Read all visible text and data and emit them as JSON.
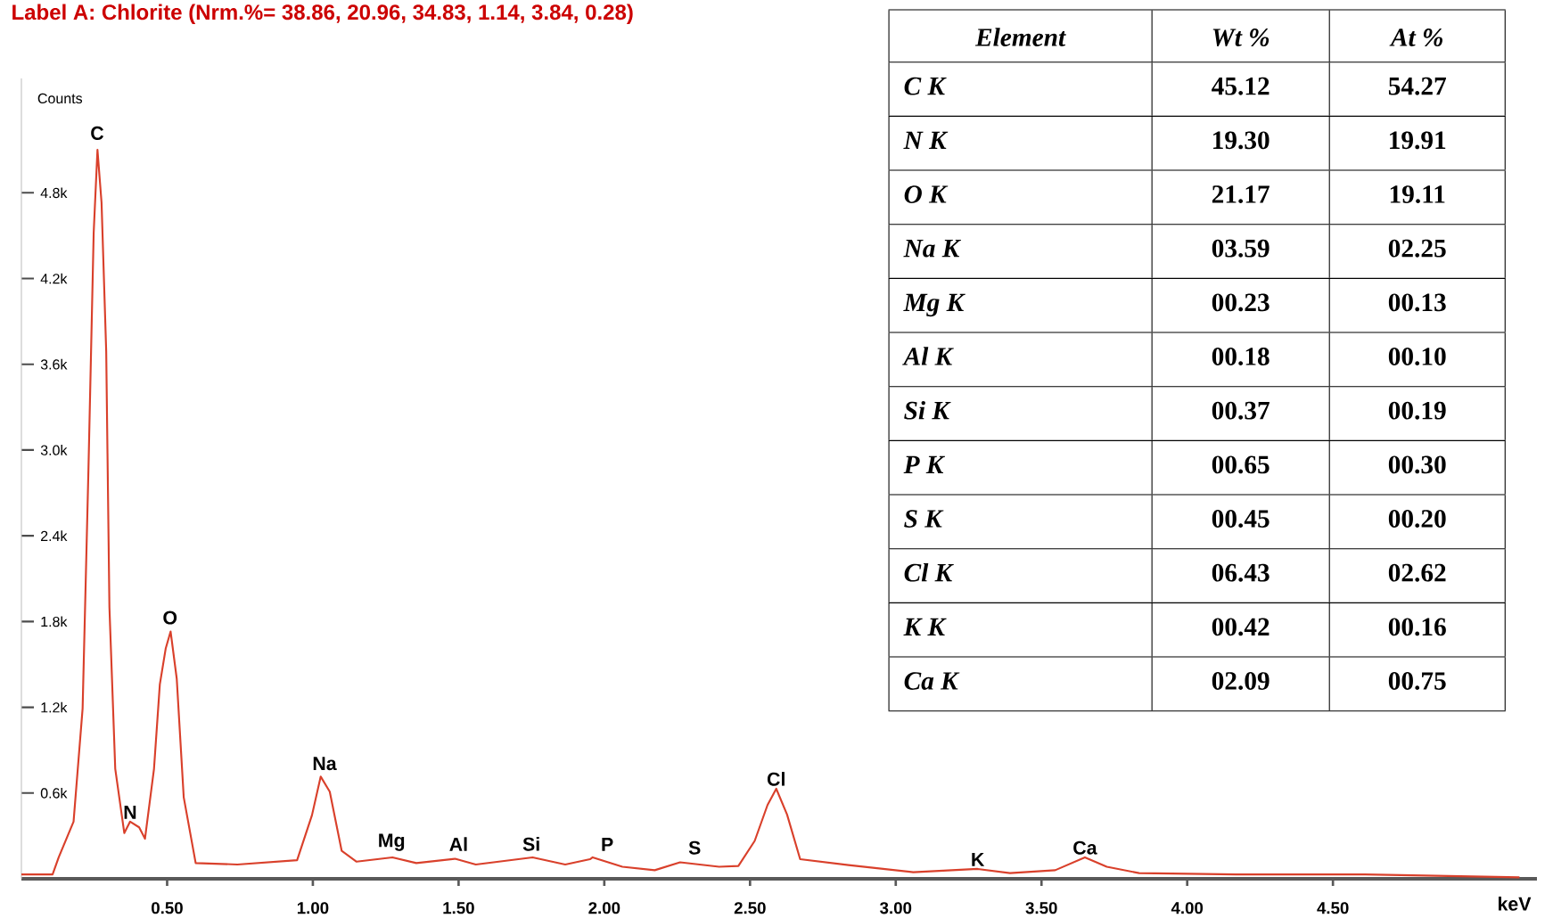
{
  "chart_data": [
    {
      "type": "line",
      "title": "Label A: Chlorite (Nrm.%= 38.86, 20.96, 34.83, 1.14, 3.84, 0.28)",
      "xlabel": "keV",
      "ylabel": "Counts",
      "x": [
        0.0,
        0.107,
        0.128,
        0.179,
        0.21,
        0.23,
        0.248,
        0.261,
        0.275,
        0.291,
        0.302,
        0.322,
        0.353,
        0.373,
        0.404,
        0.424,
        0.455,
        0.475,
        0.495,
        0.512,
        0.533,
        0.557,
        0.598,
        0.741,
        0.946,
        0.997,
        1.027,
        1.058,
        1.099,
        1.15,
        1.273,
        1.355,
        1.488,
        1.559,
        1.754,
        1.866,
        1.951,
        1.96,
        2.062,
        2.173,
        2.26,
        2.394,
        2.46,
        2.516,
        2.56,
        2.59,
        2.627,
        2.672,
        2.838,
        3.06,
        3.281,
        3.392,
        3.547,
        3.649,
        3.724,
        3.835,
        4.168,
        4.61,
        5.14
      ],
      "series": [
        {
          "color": "#d9402b",
          "values": [
            30,
            30,
            150,
            400,
            1190,
            2860,
            4520,
            5100,
            4730,
            3690,
            1900,
            770,
            320,
            400,
            360,
            280,
            770,
            1360,
            1610,
            1730,
            1400,
            570,
            110,
            100,
            130,
            445,
            715,
            610,
            195,
            120,
            150,
            110,
            140,
            100,
            150,
            100,
            137,
            150,
            84,
            60,
            115,
            84,
            90,
            265,
            516,
            630,
            450,
            137,
            96,
            46,
            69,
            40,
            60,
            150,
            84,
            40,
            30,
            30,
            10
          ]
        }
      ],
      "xlim": [
        0,
        5.2
      ],
      "ylim": [
        0,
        5600
      ],
      "xticks": [
        {
          "value": 0.5,
          "label": "0.50"
        },
        {
          "value": 1.0,
          "label": "1.00"
        },
        {
          "value": 1.5,
          "label": "1.50"
        },
        {
          "value": 2.0,
          "label": "2.00"
        },
        {
          "value": 2.5,
          "label": "2.50"
        },
        {
          "value": 3.0,
          "label": "3.00"
        },
        {
          "value": 3.5,
          "label": "3.50"
        },
        {
          "value": 4.0,
          "label": "4.00"
        },
        {
          "value": 4.5,
          "label": "4.50"
        }
      ],
      "yticks": [
        {
          "value": 600,
          "label": "0.6k"
        },
        {
          "value": 1200,
          "label": "1.2k"
        },
        {
          "value": 1800,
          "label": "1.8k"
        },
        {
          "value": 2400,
          "label": "2.4k"
        },
        {
          "value": 3000,
          "label": "3.0k"
        },
        {
          "value": 3600,
          "label": "3.6k"
        },
        {
          "value": 4200,
          "label": "4.2k"
        },
        {
          "value": 4800,
          "label": "4.8k"
        }
      ],
      "annotations": [
        {
          "text": "C",
          "x": 0.26,
          "y": 5150
        },
        {
          "text": "N",
          "x": 0.373,
          "y": 400
        },
        {
          "text": "O",
          "x": 0.51,
          "y": 1760
        },
        {
          "text": "Na",
          "x": 1.04,
          "y": 740
        },
        {
          "text": "Mg",
          "x": 1.27,
          "y": 175
        },
        {
          "text": "Al",
          "x": 1.5,
          "y": 175
        },
        {
          "text": "Si",
          "x": 1.75,
          "y": 175
        },
        {
          "text": "P",
          "x": 2.01,
          "y": 175
        },
        {
          "text": "S",
          "x": 2.31,
          "y": 150
        },
        {
          "text": "Cl",
          "x": 2.59,
          "y": 630
        },
        {
          "text": "K",
          "x": 3.281,
          "y": 69
        },
        {
          "text": "Ca",
          "x": 3.649,
          "y": 150
        }
      ]
    },
    {
      "type": "other",
      "categories": [
        "Element",
        "Wt %",
        "At %"
      ],
      "annotations": [
        "C K",
        "45.12",
        "54.27",
        "N K",
        "19.30",
        "19.91",
        "O K",
        "21.17",
        "19.11",
        "Na K",
        "03.59",
        "02.25",
        "Mg K",
        "00.23",
        "00.13",
        "Al K",
        "00.18",
        "00.10",
        "Si K",
        "00.37",
        "00.19",
        "P K",
        "00.65",
        "00.30",
        "S K",
        "00.45",
        "00.20",
        "Cl K",
        "06.43",
        "02.62",
        "K K",
        "00.42",
        "00.16",
        "Ca K",
        "02.09",
        "00.75"
      ]
    }
  ]
}
